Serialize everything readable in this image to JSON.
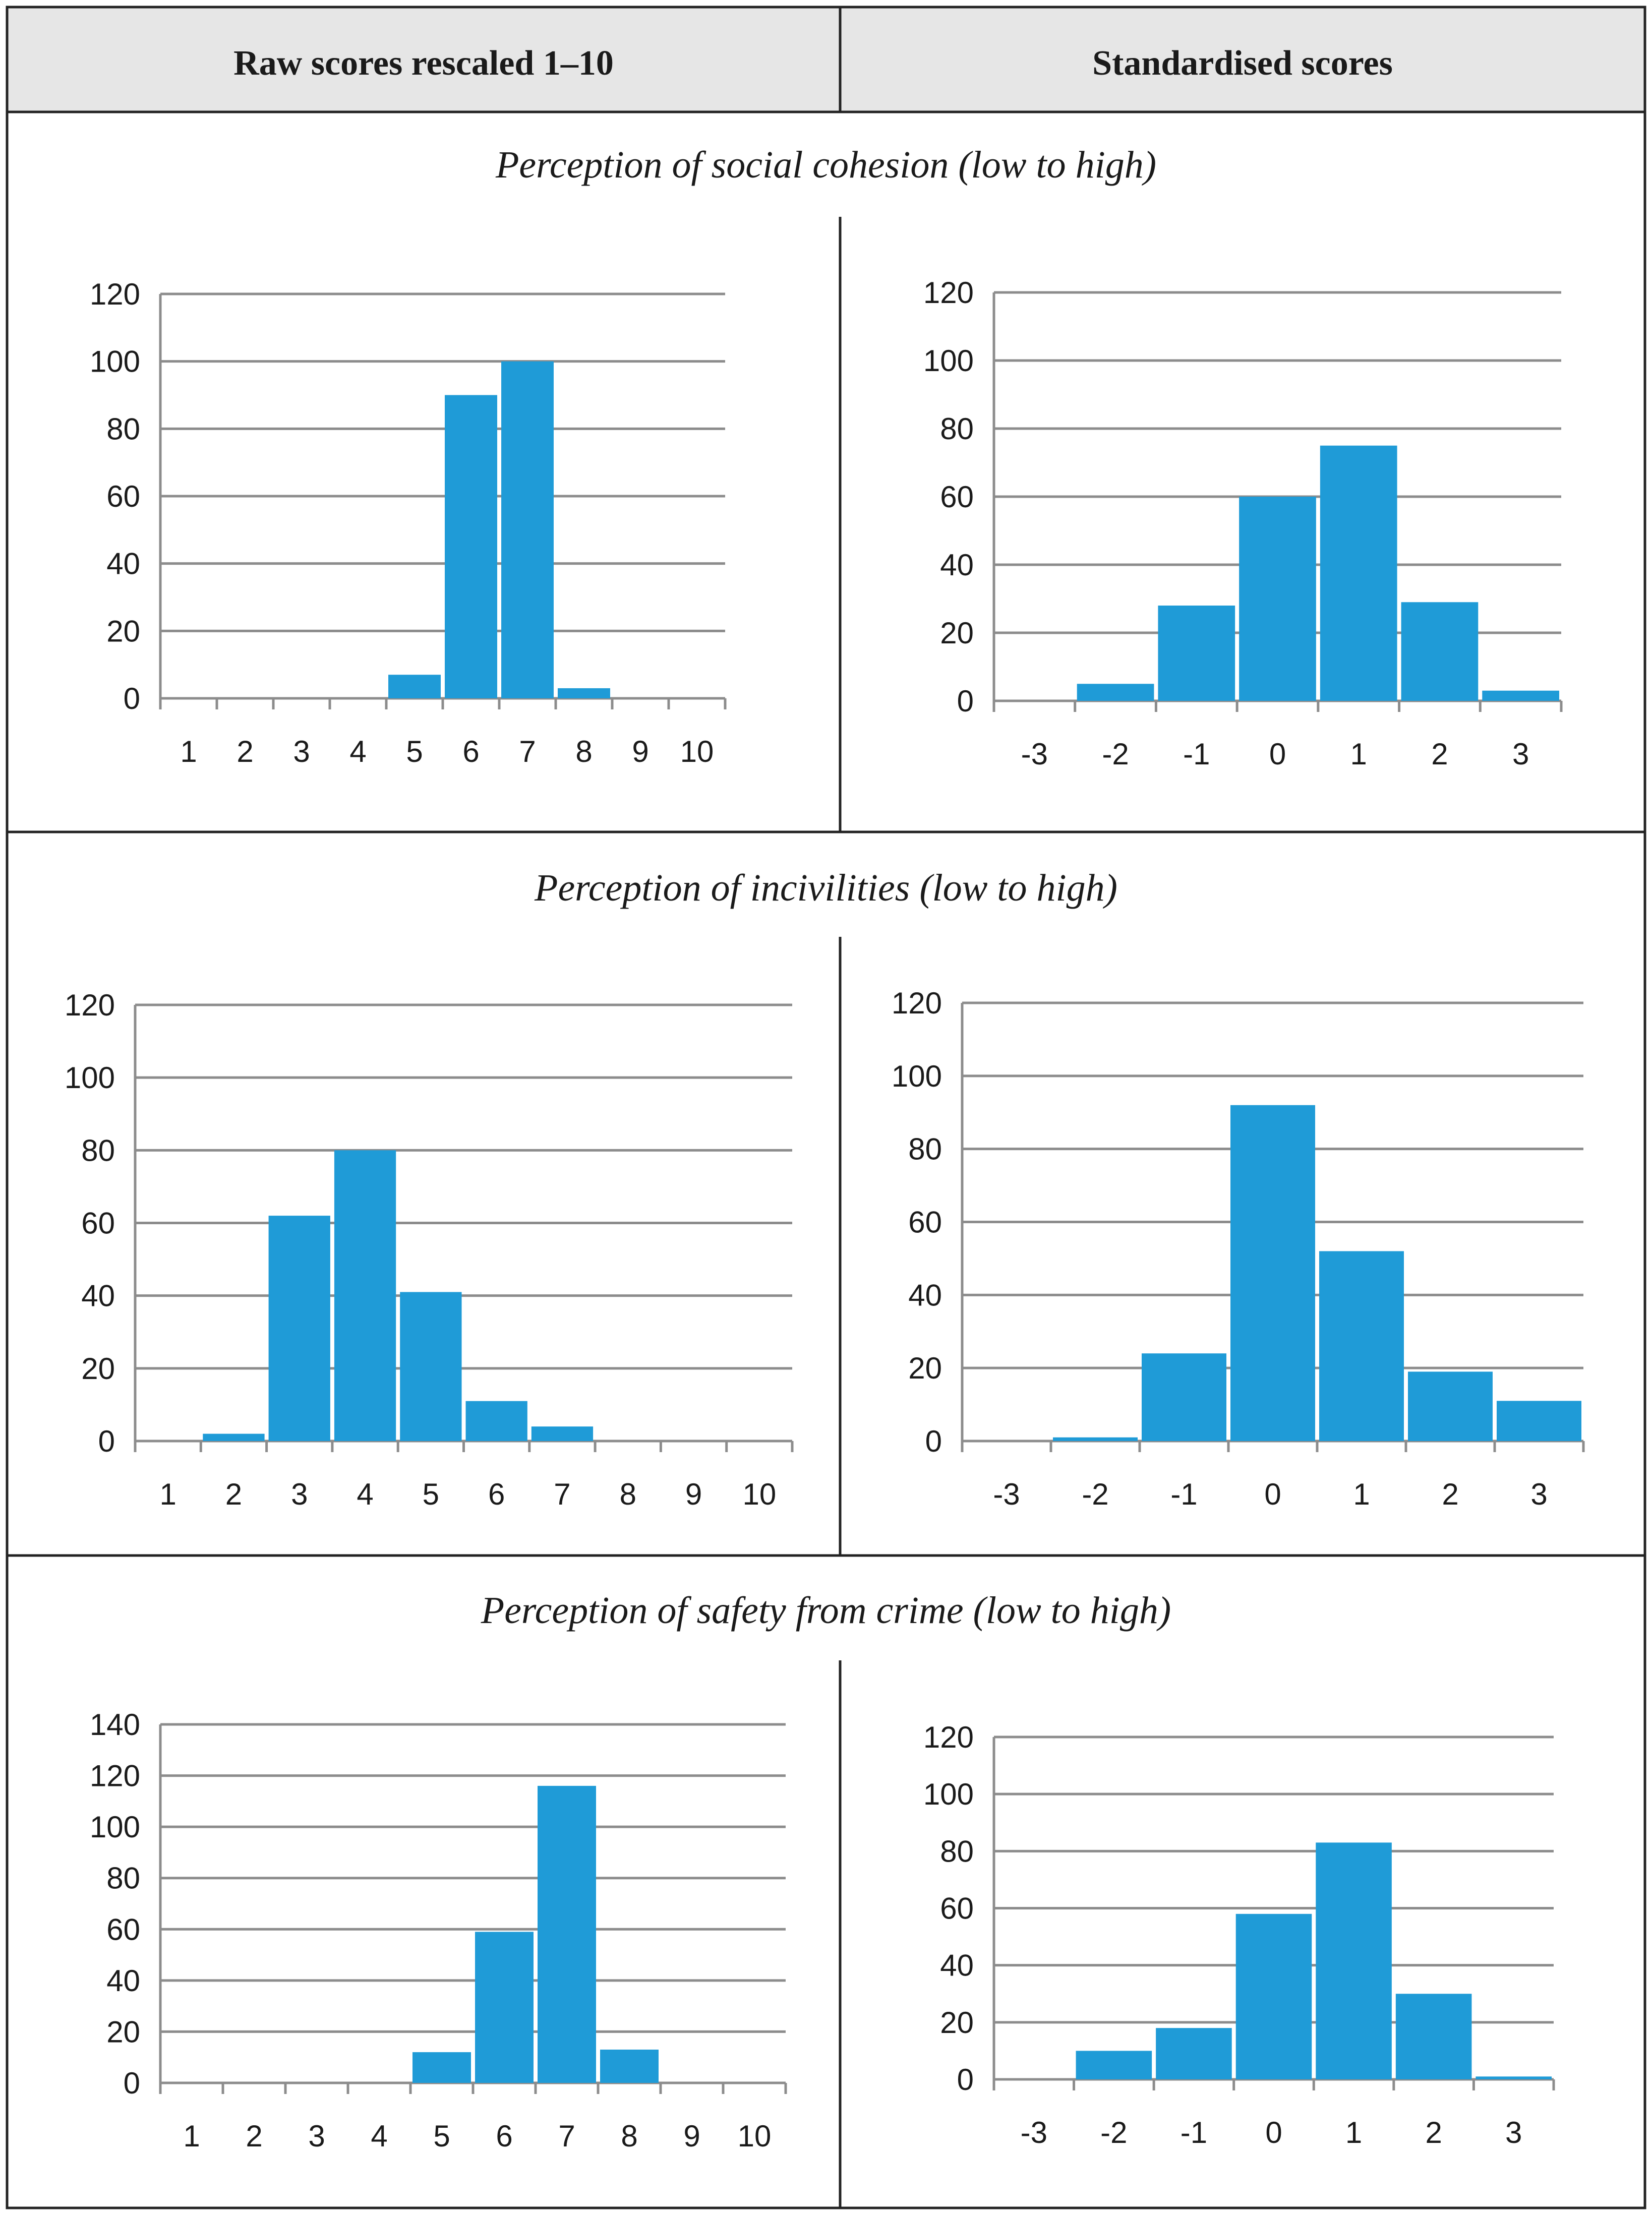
{
  "table": {
    "col_headers": [
      "Raw scores rescaled 1–10",
      "Standardised scores"
    ],
    "sections": [
      "Perception of social cohesion (low to high)",
      "Perception of incivilities (low to high)",
      "Perception of safety from crime (low to high)"
    ]
  },
  "colors": {
    "bar": "#1f9bd7",
    "grid": "#8c8c8c",
    "header_bg": "#e6e6e6",
    "border": "#222222"
  },
  "chart_data": [
    {
      "type": "bar",
      "panel": "social-cohesion-raw",
      "title": "Perception of social cohesion (low to high)",
      "categories": [
        "1",
        "2",
        "3",
        "4",
        "5",
        "6",
        "7",
        "8",
        "9",
        "10"
      ],
      "values": [
        0,
        0,
        0,
        0,
        7,
        90,
        100,
        3,
        0,
        0
      ],
      "ylim": [
        0,
        120
      ],
      "yticks": [
        "0",
        "20",
        "40",
        "60",
        "80",
        "100",
        "120"
      ],
      "grid": true
    },
    {
      "type": "bar",
      "panel": "social-cohesion-std",
      "title": "Perception of social cohesion (low to high)",
      "categories": [
        "-3",
        "-2",
        "-1",
        "0",
        "1",
        "2",
        "3"
      ],
      "values": [
        0,
        5,
        28,
        60,
        75,
        29,
        3
      ],
      "ylim": [
        0,
        120
      ],
      "yticks": [
        "0",
        "20",
        "40",
        "60",
        "80",
        "100",
        "120"
      ],
      "grid": true
    },
    {
      "type": "bar",
      "panel": "incivilities-raw",
      "title": "Perception of incivilities (low to high)",
      "categories": [
        "1",
        "2",
        "3",
        "4",
        "5",
        "6",
        "7",
        "8",
        "9",
        "10"
      ],
      "values": [
        0,
        2,
        62,
        80,
        41,
        11,
        4,
        0,
        0,
        0
      ],
      "ylim": [
        0,
        120
      ],
      "yticks": [
        "0",
        "20",
        "40",
        "60",
        "80",
        "100",
        "120"
      ],
      "grid": true
    },
    {
      "type": "bar",
      "panel": "incivilities-std",
      "title": "Perception of incivilities (low to high)",
      "categories": [
        "-3",
        "-2",
        "-1",
        "0",
        "1",
        "2",
        "3"
      ],
      "values": [
        0,
        1,
        24,
        92,
        52,
        19,
        11
      ],
      "ylim": [
        0,
        120
      ],
      "yticks": [
        "0",
        "20",
        "40",
        "60",
        "80",
        "100",
        "120"
      ],
      "grid": true
    },
    {
      "type": "bar",
      "panel": "safety-raw",
      "title": "Perception of safety from crime (low to high)",
      "categories": [
        "1",
        "2",
        "3",
        "4",
        "5",
        "6",
        "7",
        "8",
        "9",
        "10"
      ],
      "values": [
        0,
        0,
        0,
        0,
        12,
        59,
        116,
        13,
        0,
        0
      ],
      "ylim": [
        0,
        140
      ],
      "yticks": [
        "0",
        "20",
        "40",
        "60",
        "80",
        "100",
        "120",
        "140"
      ],
      "grid": true
    },
    {
      "type": "bar",
      "panel": "safety-std",
      "title": "Perception of safety from crime (low to high)",
      "categories": [
        "-3",
        "-2",
        "-1",
        "0",
        "1",
        "2",
        "3"
      ],
      "values": [
        0,
        10,
        18,
        58,
        83,
        30,
        1
      ],
      "ylim": [
        0,
        120
      ],
      "yticks": [
        "0",
        "20",
        "40",
        "60",
        "80",
        "100",
        "120"
      ],
      "grid": true
    }
  ]
}
